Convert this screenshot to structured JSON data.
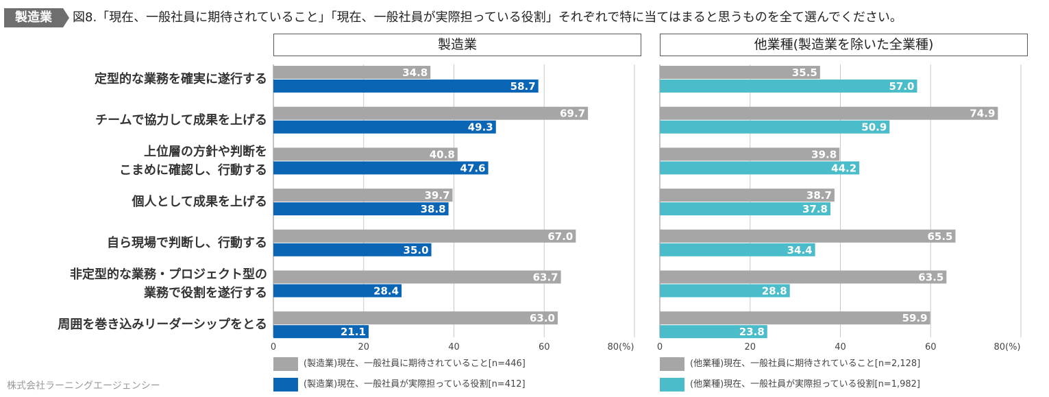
{
  "header": {
    "tag": "製造業",
    "title": "図8.「現在、一般社員に期待されていること」「現在、一般社員が実際担っている役割」それぞれで特に当てはまると思うものを全て選んでください。"
  },
  "colors": {
    "gray": "#a6a6a6",
    "blue": "#0a66b5",
    "teal": "#4bbcc9",
    "tag": "#6e6e6e"
  },
  "chart_data": {
    "type": "bar",
    "orientation": "horizontal",
    "categories": [
      "定型的な業務を確実に遂行する",
      "チームで協力して成果を上げる",
      "上位層の方針や判断を\nこまめに確認し、行動する",
      "個人として成果を上げる",
      "自ら現場で判断し、行動する",
      "非定型的な業務・プロジェクト型の\n業務で役割を遂行する",
      "周囲を巻き込みリーダーシップをとる"
    ],
    "category_lines": [
      [
        "定型的な業務を確実に遂行する"
      ],
      [
        "チームで協力して成果を上げる"
      ],
      [
        "上位層の方針や判断を",
        "こまめに確認し、行動する"
      ],
      [
        "個人として成果を上げる"
      ],
      [
        "自ら現場で判断し、行動する"
      ],
      [
        "非定型的な業務・プロジェクト型の",
        "業務で役割を遂行する"
      ],
      [
        "周囲を巻き込みリーダーシップをとる"
      ]
    ],
    "xlim": [
      0,
      80
    ],
    "xticks": [
      "0",
      "20",
      "40",
      "60",
      "80(%)"
    ],
    "panels": [
      {
        "title": "製造業",
        "series": [
          {
            "name": "(製造業)現在、一般社員に期待されていること[n=446]",
            "color_key": "gray",
            "values": [
              34.8,
              69.7,
              40.8,
              39.7,
              67.0,
              63.7,
              63.0
            ]
          },
          {
            "name": "(製造業)現在、一般社員が実際担っている役割[n=412]",
            "color_key": "blue",
            "values": [
              58.7,
              49.3,
              47.6,
              38.8,
              35.0,
              28.4,
              21.1
            ]
          }
        ]
      },
      {
        "title": "他業種(製造業を除いた全業種)",
        "series": [
          {
            "name": "(他業種)現在、一般社員に期待されていること[n=2,128]",
            "color_key": "gray",
            "values": [
              35.5,
              74.9,
              39.8,
              38.7,
              65.5,
              63.5,
              59.9
            ]
          },
          {
            "name": "(他業種)現在、一般社員が実際担っている役割[n=1,982]",
            "color_key": "teal",
            "values": [
              57.0,
              50.9,
              44.2,
              37.8,
              34.4,
              28.8,
              23.8
            ]
          }
        ]
      }
    ]
  },
  "source": "株式会社ラーニングエージェンシー"
}
